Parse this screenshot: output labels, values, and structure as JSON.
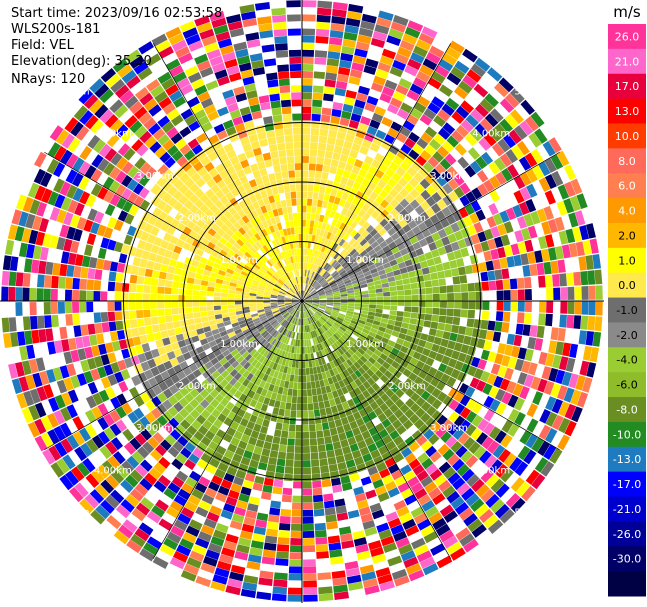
{
  "header": {
    "start_time": "Start time: 2023/09/16 02:53:58",
    "instrument": "WLS200s-181",
    "field": "Field: VEL",
    "elevation": "Elevation(deg): 35.30",
    "nrays": "NRays: 120"
  },
  "chart_data": {
    "type": "ppi",
    "field": "VEL",
    "units": "m/s",
    "nrays": 120,
    "range_rings_km": [
      1,
      2,
      3
    ],
    "max_range_km": 5.0,
    "range_labels": [
      "1.00km",
      "2.00km",
      "3.00km",
      "4.00km",
      "5.00km"
    ],
    "colorbar": {
      "title": "m/s",
      "tick_labels": [
        "26.0",
        "21.0",
        "17.0",
        "13.0",
        "10.0",
        "8.0",
        "6.0",
        "4.0",
        "2.0",
        "1.0",
        "0.0",
        "-1.0",
        "-2.0",
        "-4.0",
        "-6.0",
        "-8.0",
        "-10.0",
        "-13.0",
        "-17.0",
        "-21.0",
        "-26.0",
        "-30.0"
      ],
      "colors": [
        "#ff3399",
        "#ff66cc",
        "#e8003d",
        "#ff0000",
        "#ff3b00",
        "#ff6a5a",
        "#ff7f50",
        "#ff9900",
        "#ffb700",
        "#ffff00",
        "#ffe94d",
        "#6e6e6e",
        "#8a8a8a",
        "#9acd32",
        "#8fbc2a",
        "#6b8e23",
        "#228b22",
        "#1f7bbf",
        "#0000ff",
        "#0000cd",
        "#000099",
        "#000066",
        "#000044"
      ]
    },
    "pattern": {
      "positive_sector_center_deg": 330,
      "clean_range_km": 3.0,
      "noise_start_km": 3.0
    }
  }
}
